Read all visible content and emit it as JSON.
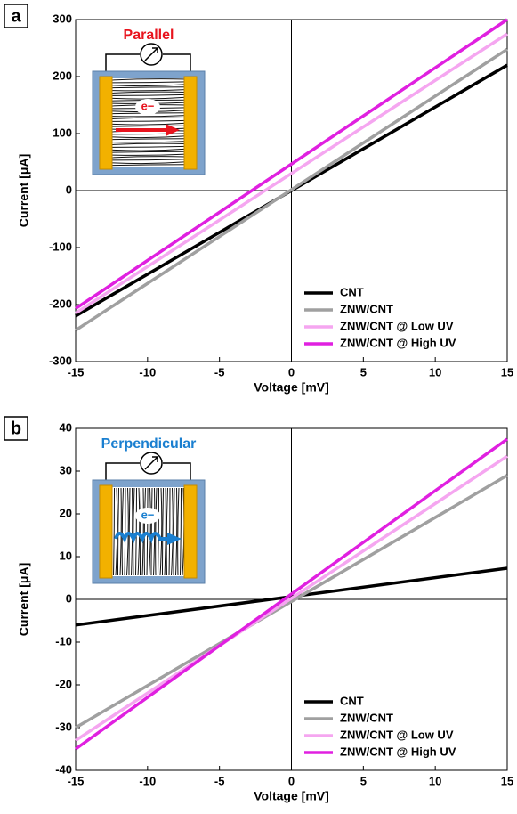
{
  "chart_data": [
    {
      "type": "line",
      "panel_label": "a",
      "inset_label": "Parallel",
      "inset_label_color": "#e8141e",
      "electron_label": "e−",
      "xlabel": "Voltage [mV]",
      "ylabel": "Current [μA]",
      "x": [
        -15,
        15
      ],
      "xlim": [
        -15,
        15
      ],
      "xticks": [
        -15,
        -10,
        -5,
        0,
        5,
        10,
        15
      ],
      "ylim": [
        -300,
        300
      ],
      "yticks": [
        -300,
        -200,
        -100,
        0,
        100,
        200,
        300
      ],
      "legend": "lower right",
      "series": [
        {
          "name": "CNT",
          "color": "#000000",
          "values": [
            -220,
            220
          ]
        },
        {
          "name": "ZNW/CNT",
          "color": "#a0a0a0",
          "values": [
            -245,
            248
          ]
        },
        {
          "name": "ZNW/CNT @ Low UV",
          "color": "#f5a6f0",
          "values": [
            -215,
            275
          ]
        },
        {
          "name": "ZNW/CNT @ High UV",
          "color": "#e020e0",
          "values": [
            -207,
            300
          ]
        }
      ]
    },
    {
      "type": "line",
      "panel_label": "b",
      "inset_label": "Perpendicular",
      "inset_label_color": "#1a7fd0",
      "electron_label": "e−",
      "xlabel": "Voltage [mV]",
      "ylabel": "Current [μA]",
      "x": [
        -15,
        15
      ],
      "xlim": [
        -15,
        15
      ],
      "xticks": [
        -15,
        -10,
        -5,
        0,
        5,
        10,
        15
      ],
      "ylim": [
        -40,
        40
      ],
      "yticks": [
        -40,
        -30,
        -20,
        -10,
        0,
        10,
        20,
        30,
        40
      ],
      "legend": "lower right",
      "series": [
        {
          "name": "CNT",
          "color": "#000000",
          "values": [
            -6,
            7.3
          ]
        },
        {
          "name": "ZNW/CNT",
          "color": "#a0a0a0",
          "values": [
            -30,
            29
          ]
        },
        {
          "name": "ZNW/CNT @ Low UV",
          "color": "#f5a6f0",
          "values": [
            -33,
            33.5
          ]
        },
        {
          "name": "ZNW/CNT @ High UV",
          "color": "#e020e0",
          "values": [
            -35,
            37.5
          ]
        }
      ]
    }
  ]
}
